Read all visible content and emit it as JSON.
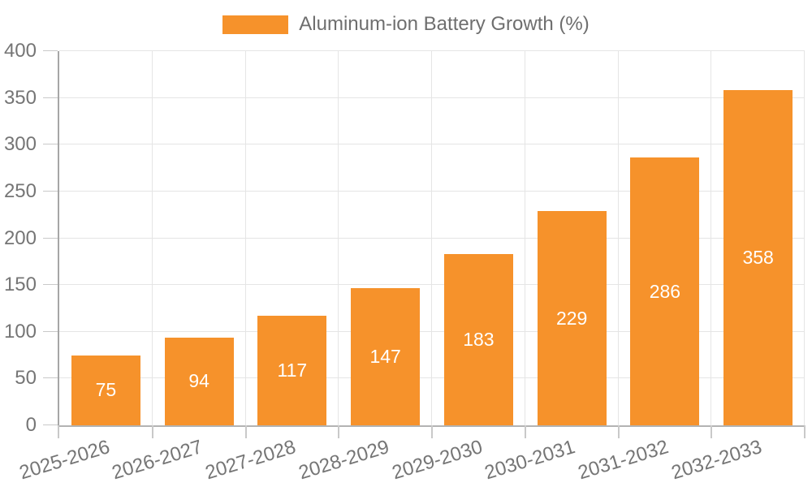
{
  "chart_data": {
    "type": "bar",
    "title": "Aluminum-ion Battery Growth (%)",
    "categories": [
      "2025-2026",
      "2026-2027",
      "2027-2028",
      "2028-2029",
      "2029-2030",
      "2030-2031",
      "2031-2032",
      "2032-2033"
    ],
    "values": [
      75,
      94,
      117,
      147,
      183,
      229,
      286,
      358
    ],
    "xlabel": "",
    "ylabel": "",
    "ylim": [
      0,
      400
    ],
    "yticks": [
      0,
      50,
      100,
      150,
      200,
      250,
      300,
      350,
      400
    ],
    "grid": true,
    "legend_position": "top-center",
    "x_tick_rotation_deg": -17,
    "bar_color": "#F6922B",
    "value_label_color": "#FFFFFF"
  },
  "colors": {
    "background": "#FFFFFF",
    "grid": "#E5E5E5",
    "y_axis_line": "#A6A6A6",
    "x_axis_line": "#B3B3B3",
    "tick": "#C9C9C9",
    "axis_text": "#757575",
    "legend_text": "#6E6E6E"
  }
}
